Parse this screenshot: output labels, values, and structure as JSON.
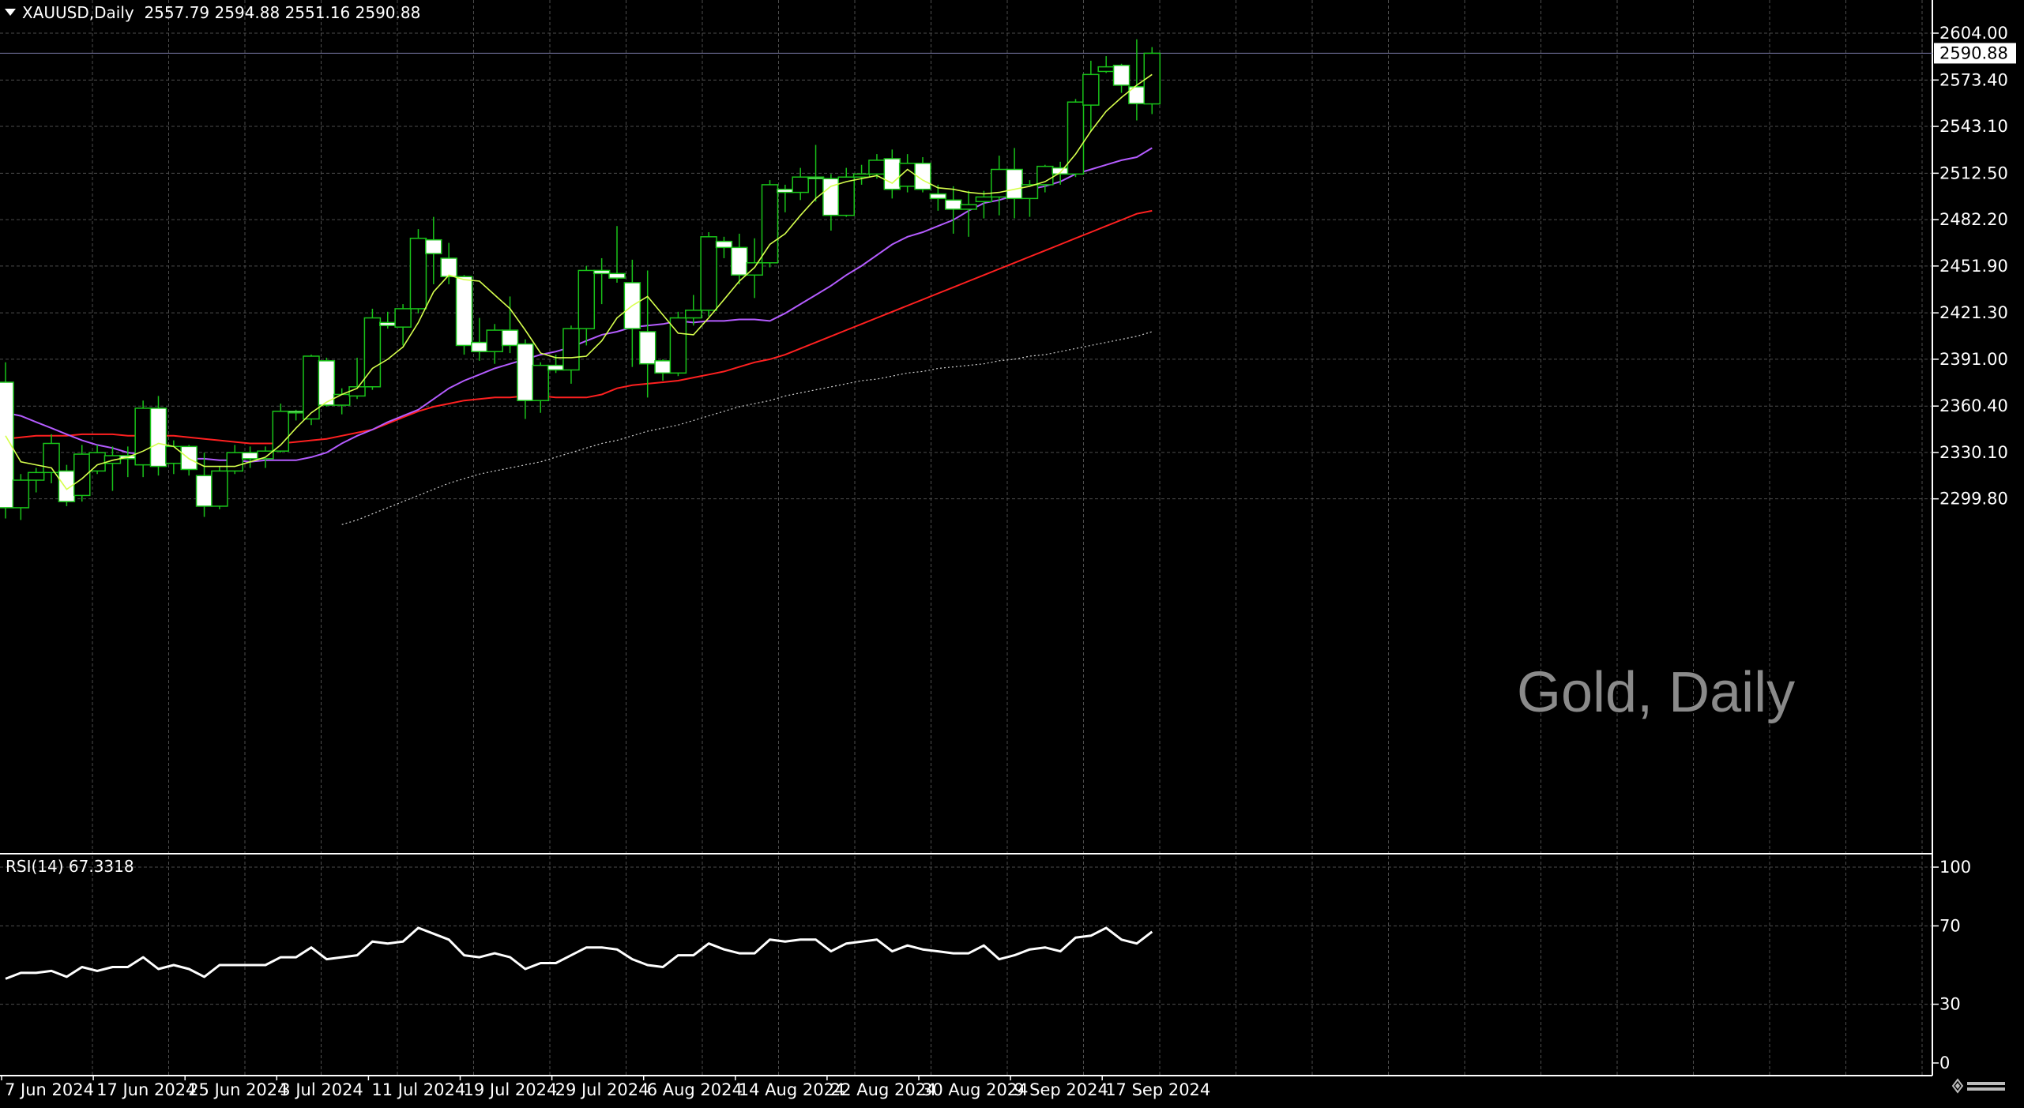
{
  "header": {
    "symbol": "XAUUSD",
    "timeframe": "Daily",
    "symbol_timeframe": "XAUUSD,Daily",
    "ohlc": "2557.79 2594.88 2551.16 2590.88"
  },
  "watermark": "Gold, Daily",
  "rsi_label": "RSI(14) 67.3318",
  "colors": {
    "background": "#000000",
    "grid": "#4d4d4d",
    "bull_candle": "#000000",
    "bear_candle": "#ffffff",
    "wick": "#19c219",
    "ma_fast": "#d6ff4d",
    "ma_mid": "#b45cff",
    "ma_slow": "#ff2020",
    "ma_long": "#cfcfcf",
    "rsi_line": "#ffffff"
  },
  "chart_data": [
    {
      "type": "candlestick",
      "title": "XAUUSD,Daily",
      "ylim": [
        2283,
        2619
      ],
      "y_ticks": [
        "2604.00",
        "2573.40",
        "2543.10",
        "2512.50",
        "2482.20",
        "2451.90",
        "2421.30",
        "2391.00",
        "2360.40",
        "2330.10",
        "2299.80"
      ],
      "current_price_label": "2590.88",
      "current_price": 2590.88,
      "x_tick_labels": [
        "7 Jun 2024",
        "17 Jun 2024",
        "25 Jun 2024",
        "3 Jul 2024",
        "11 Jul 2024",
        "19 Jul 2024",
        "29 Jul 2024",
        "6 Aug 2024",
        "14 Aug 2024",
        "22 Aug 2024",
        "30 Aug 2024",
        "9 Sep 2024",
        "17 Sep 2024"
      ],
      "x_tick_bar_index": [
        0,
        6,
        12,
        18,
        24,
        30,
        36,
        42,
        48,
        54,
        60,
        66,
        72
      ],
      "candles": [
        {
          "o": 2376,
          "h": 2389,
          "l": 2287,
          "c": 2294
        },
        {
          "o": 2294,
          "h": 2316,
          "l": 2286,
          "c": 2312
        },
        {
          "o": 2312,
          "h": 2320,
          "l": 2304,
          "c": 2317
        },
        {
          "o": 2317,
          "h": 2342,
          "l": 2310,
          "c": 2336
        },
        {
          "o": 2318,
          "h": 2322,
          "l": 2295,
          "c": 2298
        },
        {
          "o": 2302,
          "h": 2335,
          "l": 2298,
          "c": 2329
        },
        {
          "o": 2318,
          "h": 2335,
          "l": 2316,
          "c": 2330
        },
        {
          "o": 2323,
          "h": 2334,
          "l": 2305,
          "c": 2328
        },
        {
          "o": 2328,
          "h": 2334,
          "l": 2314,
          "c": 2326
        },
        {
          "o": 2322,
          "h": 2364,
          "l": 2314,
          "c": 2359
        },
        {
          "o": 2359,
          "h": 2367,
          "l": 2315,
          "c": 2321
        },
        {
          "o": 2323,
          "h": 2338,
          "l": 2316,
          "c": 2334
        },
        {
          "o": 2334,
          "h": 2335,
          "l": 2315,
          "c": 2319
        },
        {
          "o": 2315,
          "h": 2330,
          "l": 2288,
          "c": 2295
        },
        {
          "o": 2295,
          "h": 2321,
          "l": 2293,
          "c": 2318
        },
        {
          "o": 2318,
          "h": 2335,
          "l": 2316,
          "c": 2330
        },
        {
          "o": 2330,
          "h": 2334,
          "l": 2320,
          "c": 2326
        },
        {
          "o": 2326,
          "h": 2334,
          "l": 2320,
          "c": 2331
        },
        {
          "o": 2331,
          "h": 2362,
          "l": 2330,
          "c": 2357
        },
        {
          "o": 2357,
          "h": 2358,
          "l": 2351,
          "c": 2356
        },
        {
          "o": 2352,
          "h": 2394,
          "l": 2348,
          "c": 2393
        },
        {
          "o": 2390,
          "h": 2392,
          "l": 2360,
          "c": 2361
        },
        {
          "o": 2361,
          "h": 2372,
          "l": 2355,
          "c": 2368
        },
        {
          "o": 2367,
          "h": 2392,
          "l": 2365,
          "c": 2373
        },
        {
          "o": 2373,
          "h": 2424,
          "l": 2371,
          "c": 2418
        },
        {
          "o": 2415,
          "h": 2422,
          "l": 2411,
          "c": 2413
        },
        {
          "o": 2412,
          "h": 2427,
          "l": 2400,
          "c": 2424
        },
        {
          "o": 2424,
          "h": 2476,
          "l": 2421,
          "c": 2470
        },
        {
          "o": 2469,
          "h": 2484,
          "l": 2440,
          "c": 2460
        },
        {
          "o": 2457,
          "h": 2467,
          "l": 2440,
          "c": 2445
        },
        {
          "o": 2445,
          "h": 2446,
          "l": 2394,
          "c": 2400
        },
        {
          "o": 2402,
          "h": 2418,
          "l": 2390,
          "c": 2396
        },
        {
          "o": 2396,
          "h": 2414,
          "l": 2388,
          "c": 2410
        },
        {
          "o": 2410,
          "h": 2432,
          "l": 2395,
          "c": 2400
        },
        {
          "o": 2401,
          "h": 2404,
          "l": 2352,
          "c": 2364
        },
        {
          "o": 2364,
          "h": 2389,
          "l": 2356,
          "c": 2387
        },
        {
          "o": 2387,
          "h": 2394,
          "l": 2382,
          "c": 2384
        },
        {
          "o": 2384,
          "h": 2413,
          "l": 2375,
          "c": 2411
        },
        {
          "o": 2411,
          "h": 2452,
          "l": 2400,
          "c": 2449
        },
        {
          "o": 2449,
          "h": 2457,
          "l": 2427,
          "c": 2447
        },
        {
          "o": 2447,
          "h": 2478,
          "l": 2441,
          "c": 2444
        },
        {
          "o": 2441,
          "h": 2456,
          "l": 2386,
          "c": 2411
        },
        {
          "o": 2409,
          "h": 2449,
          "l": 2366,
          "c": 2388
        },
        {
          "o": 2390,
          "h": 2391,
          "l": 2377,
          "c": 2382
        },
        {
          "o": 2382,
          "h": 2422,
          "l": 2380,
          "c": 2418
        },
        {
          "o": 2418,
          "h": 2433,
          "l": 2413,
          "c": 2423
        },
        {
          "o": 2423,
          "h": 2474,
          "l": 2419,
          "c": 2471
        },
        {
          "o": 2468,
          "h": 2471,
          "l": 2457,
          "c": 2464
        },
        {
          "o": 2464,
          "h": 2473,
          "l": 2440,
          "c": 2446
        },
        {
          "o": 2446,
          "h": 2470,
          "l": 2431,
          "c": 2454
        },
        {
          "o": 2454,
          "h": 2508,
          "l": 2451,
          "c": 2505
        },
        {
          "o": 2502,
          "h": 2505,
          "l": 2487,
          "c": 2500
        },
        {
          "o": 2500,
          "h": 2516,
          "l": 2495,
          "c": 2510
        },
        {
          "o": 2510,
          "h": 2531,
          "l": 2494,
          "c": 2509
        },
        {
          "o": 2509,
          "h": 2512,
          "l": 2475,
          "c": 2485
        },
        {
          "o": 2485,
          "h": 2516,
          "l": 2484,
          "c": 2510
        },
        {
          "o": 2510,
          "h": 2518,
          "l": 2505,
          "c": 2512
        },
        {
          "o": 2512,
          "h": 2525,
          "l": 2509,
          "c": 2521
        },
        {
          "o": 2522,
          "h": 2528,
          "l": 2496,
          "c": 2502
        },
        {
          "o": 2504,
          "h": 2525,
          "l": 2500,
          "c": 2519
        },
        {
          "o": 2519,
          "h": 2523,
          "l": 2500,
          "c": 2502
        },
        {
          "o": 2499,
          "h": 2505,
          "l": 2488,
          "c": 2496
        },
        {
          "o": 2495,
          "h": 2504,
          "l": 2473,
          "c": 2489
        },
        {
          "o": 2489,
          "h": 2501,
          "l": 2471,
          "c": 2492
        },
        {
          "o": 2494,
          "h": 2501,
          "l": 2483,
          "c": 2497
        },
        {
          "o": 2497,
          "h": 2524,
          "l": 2485,
          "c": 2515
        },
        {
          "o": 2515,
          "h": 2529,
          "l": 2483,
          "c": 2496
        },
        {
          "o": 2496,
          "h": 2508,
          "l": 2484,
          "c": 2505
        },
        {
          "o": 2505,
          "h": 2518,
          "l": 2500,
          "c": 2517
        },
        {
          "o": 2516,
          "h": 2520,
          "l": 2505,
          "c": 2512
        },
        {
          "o": 2512,
          "h": 2561,
          "l": 2510,
          "c": 2559
        },
        {
          "o": 2557,
          "h": 2586,
          "l": 2540,
          "c": 2577
        },
        {
          "o": 2579,
          "h": 2589,
          "l": 2578,
          "c": 2582
        },
        {
          "o": 2583,
          "h": 2584,
          "l": 2565,
          "c": 2570
        },
        {
          "o": 2569,
          "h": 2600,
          "l": 2547,
          "c": 2558
        },
        {
          "o": 2557.79,
          "h": 2594.88,
          "l": 2551.16,
          "c": 2590.88
        }
      ],
      "ma_fast": [
        2341,
        2324,
        2322,
        2320,
        2306,
        2313,
        2322,
        2325,
        2327,
        2331,
        2336,
        2334,
        2326,
        2321,
        2321,
        2321,
        2324,
        2327,
        2335,
        2346,
        2356,
        2363,
        2368,
        2372,
        2385,
        2391,
        2399,
        2415,
        2435,
        2446,
        2443,
        2442,
        2433,
        2424,
        2410,
        2395,
        2392,
        2392,
        2393,
        2403,
        2418,
        2426,
        2432,
        2420,
        2408,
        2407,
        2418,
        2430,
        2442,
        2451,
        2466,
        2473,
        2485,
        2496,
        2504,
        2507,
        2509,
        2511,
        2506,
        2515,
        2508,
        2503,
        2502,
        2500,
        2499,
        2500,
        2502,
        2504,
        2507,
        2513,
        2525,
        2540,
        2553,
        2562,
        2570,
        2577
      ],
      "ma_mid": [
        2356,
        2354,
        2350,
        2346,
        2342,
        2338,
        2335,
        2333,
        2330,
        2329,
        2328,
        2327,
        2326,
        2326,
        2325,
        2325,
        2324,
        2325,
        2325,
        2325,
        2327,
        2330,
        2336,
        2341,
        2345,
        2350,
        2354,
        2358,
        2365,
        2372,
        2377,
        2381,
        2385,
        2388,
        2391,
        2394,
        2396,
        2399,
        2403,
        2407,
        2409,
        2412,
        2413,
        2414,
        2416,
        2415,
        2416,
        2416,
        2417,
        2417,
        2416,
        2421,
        2427,
        2433,
        2439,
        2446,
        2452,
        2459,
        2466,
        2471,
        2474,
        2478,
        2482,
        2488,
        2493,
        2495,
        2498,
        2502,
        2504,
        2507,
        2512,
        2515,
        2518,
        2521,
        2523,
        2529
      ],
      "ma_slow": [
        2339,
        2340,
        2341,
        2341,
        2341,
        2342,
        2342,
        2342,
        2341,
        2341,
        2341,
        2341,
        2340,
        2339,
        2338,
        2337,
        2336,
        2336,
        2336,
        2337,
        2338,
        2339,
        2341,
        2343,
        2345,
        2349,
        2353,
        2357,
        2360,
        2362,
        2364,
        2365,
        2366,
        2366,
        2367,
        2367,
        2366,
        2366,
        2366,
        2368,
        2372,
        2374,
        2375,
        2376,
        2377,
        2379,
        2381,
        2383,
        2386,
        2389,
        2391,
        2394,
        2398,
        2402,
        2406,
        2410,
        2414,
        2418,
        2422,
        2426,
        2430,
        2434,
        2438,
        2442,
        2446,
        2450,
        2454,
        2458,
        2462,
        2466,
        2470,
        2474,
        2478,
        2482,
        2486,
        2488
      ],
      "ma_long": [
        null,
        null,
        null,
        null,
        null,
        null,
        null,
        null,
        null,
        null,
        null,
        null,
        null,
        null,
        null,
        null,
        null,
        null,
        null,
        null,
        null,
        null,
        2283,
        2286,
        2290,
        2294,
        2298,
        2302,
        2306,
        2310,
        2313,
        2316,
        2318,
        2320,
        2322,
        2324,
        2327,
        2330,
        2333,
        2336,
        2338,
        2341,
        2344,
        2346,
        2348,
        2351,
        2354,
        2357,
        2360,
        2362,
        2364,
        2367,
        2369,
        2371,
        2373,
        2375,
        2377,
        2378,
        2380,
        2382,
        2383,
        2385,
        2386,
        2387,
        2388,
        2390,
        2391,
        2393,
        2394,
        2396,
        2398,
        2400,
        2402,
        2404,
        2406,
        2409
      ]
    },
    {
      "type": "line",
      "title": "RSI(14) 67.3318",
      "ylim": [
        0,
        100
      ],
      "y_ticks": [
        "100",
        "70",
        "30",
        "0"
      ],
      "series": [
        {
          "values": [
            43,
            46,
            46,
            47,
            44,
            49,
            47,
            49,
            49,
            54,
            48,
            50,
            48,
            44,
            50,
            50,
            50,
            50,
            54,
            54,
            59,
            53,
            54,
            55,
            62,
            61,
            62,
            69,
            66,
            63,
            55,
            54,
            56,
            54,
            48,
            51,
            51,
            55,
            59,
            59,
            58,
            53,
            50,
            49,
            55,
            55,
            61,
            58,
            56,
            56,
            63,
            62,
            63,
            63,
            57,
            61,
            62,
            63,
            57,
            60,
            58,
            57,
            56,
            56,
            60,
            53,
            55,
            58,
            59,
            57,
            64,
            65,
            69,
            63,
            61,
            67
          ]
        }
      ]
    }
  ]
}
